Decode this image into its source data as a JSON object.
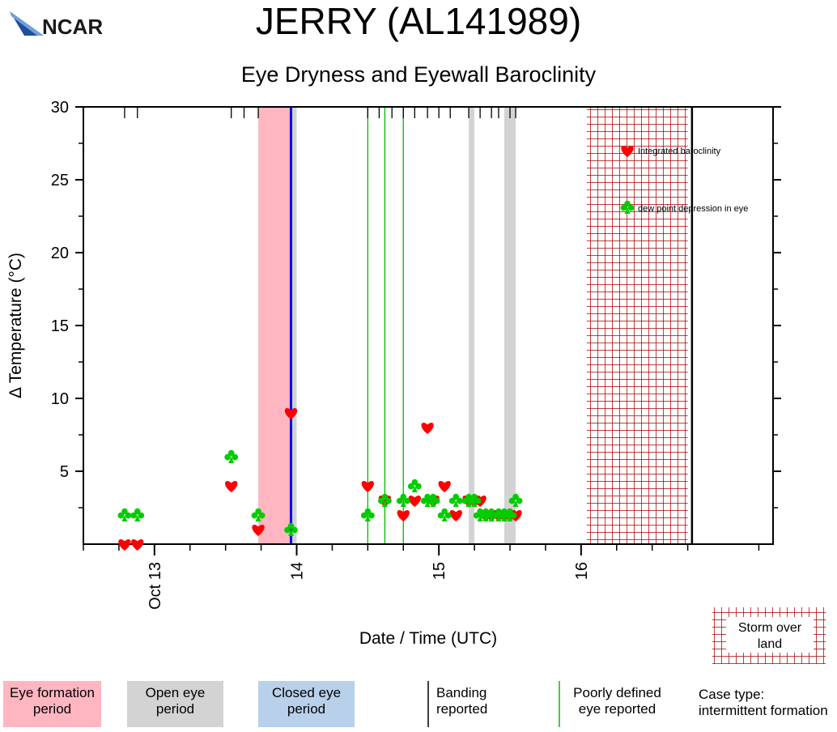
{
  "header": {
    "logo_text": "NCAR",
    "title": "JERRY (AL141989)",
    "subtitle": "Eye Dryness and Eyewall Baroclinity"
  },
  "chart_data": {
    "type": "scatter",
    "xlabel": "Date / Time (UTC)",
    "ylabel": "Δ Temperature (°C)",
    "x_units": "days since Oct 12 00 UTC",
    "xlim": [
      12.5,
      17.35
    ],
    "ylim": [
      0,
      30
    ],
    "y_ticks": [
      5,
      10,
      15,
      20,
      25,
      30
    ],
    "x_ticks": [
      {
        "value": 13,
        "label": "Oct 13"
      },
      {
        "value": 14,
        "label": "14"
      },
      {
        "value": 15,
        "label": "15"
      },
      {
        "value": 16,
        "label": "16"
      }
    ],
    "series": [
      {
        "name": "Integrated baroclinity",
        "symbol": "heart",
        "color": "#ff0000",
        "x": [
          12.79,
          12.88,
          13.54,
          13.73,
          13.96,
          14.5,
          14.62,
          14.75,
          14.83,
          14.92,
          14.96,
          15.04,
          15.12,
          15.21,
          15.25,
          15.29,
          15.33,
          15.37,
          15.42,
          15.46,
          15.5,
          15.54
        ],
        "y": [
          0,
          0,
          4,
          1,
          9,
          4,
          3,
          2,
          3,
          8,
          3,
          4,
          2,
          3,
          3,
          3,
          2,
          2,
          2,
          2,
          2,
          2
        ]
      },
      {
        "name": "dew point depression in eye",
        "symbol": "club",
        "color": "#00cc00",
        "x": [
          12.79,
          12.88,
          13.54,
          13.73,
          13.96,
          14.5,
          14.62,
          14.75,
          14.83,
          14.92,
          14.96,
          15.04,
          15.12,
          15.21,
          15.25,
          15.29,
          15.33,
          15.37,
          15.42,
          15.46,
          15.5,
          15.54
        ],
        "y": [
          2,
          2,
          6,
          2,
          1,
          2,
          3,
          3,
          4,
          3,
          3,
          2,
          3,
          3,
          3,
          2,
          2,
          2,
          2,
          2,
          2,
          3
        ]
      }
    ],
    "eye_formation_periods": [
      [
        13.73,
        13.96
      ]
    ],
    "open_eye_periods": [
      [
        13.96,
        14.0
      ],
      [
        15.21,
        15.25
      ],
      [
        15.46,
        15.54
      ]
    ],
    "closed_eye_reports": [
      13.96
    ],
    "poorly_defined_eye_reports": [
      14.5,
      14.62,
      14.75
    ],
    "top_report_ticks": [
      12.79,
      12.88,
      13.54,
      13.63,
      13.73,
      14.5,
      14.58,
      14.67,
      14.75,
      14.83,
      14.92,
      15.0,
      15.08,
      15.21,
      15.29,
      15.37,
      15.42,
      15.5,
      15.54
    ],
    "storm_over_land": [
      16.04,
      16.75
    ],
    "series_end": 16.78,
    "colors": {
      "eye_formation": "#ffb6c1",
      "open_eye": "#d3d3d3",
      "closed_eye": "#0000ff",
      "poorly_defined": "#00bb00",
      "land_hatch": "#aa0000"
    }
  },
  "legend": {
    "baroclinity_label": "Integrated baroclinity",
    "dewpoint_label": "dew point depression in eye",
    "storm_over_land_label": "Storm over land",
    "eye_formation_label": "Eye formation period",
    "open_eye_label": "Open eye period",
    "closed_eye_label": "Closed eye period",
    "banding_label": "Banding reported",
    "poorly_defined_label": "Poorly defined eye reported",
    "case_type_label": "Case type:",
    "case_type_value": "intermittent formation"
  }
}
